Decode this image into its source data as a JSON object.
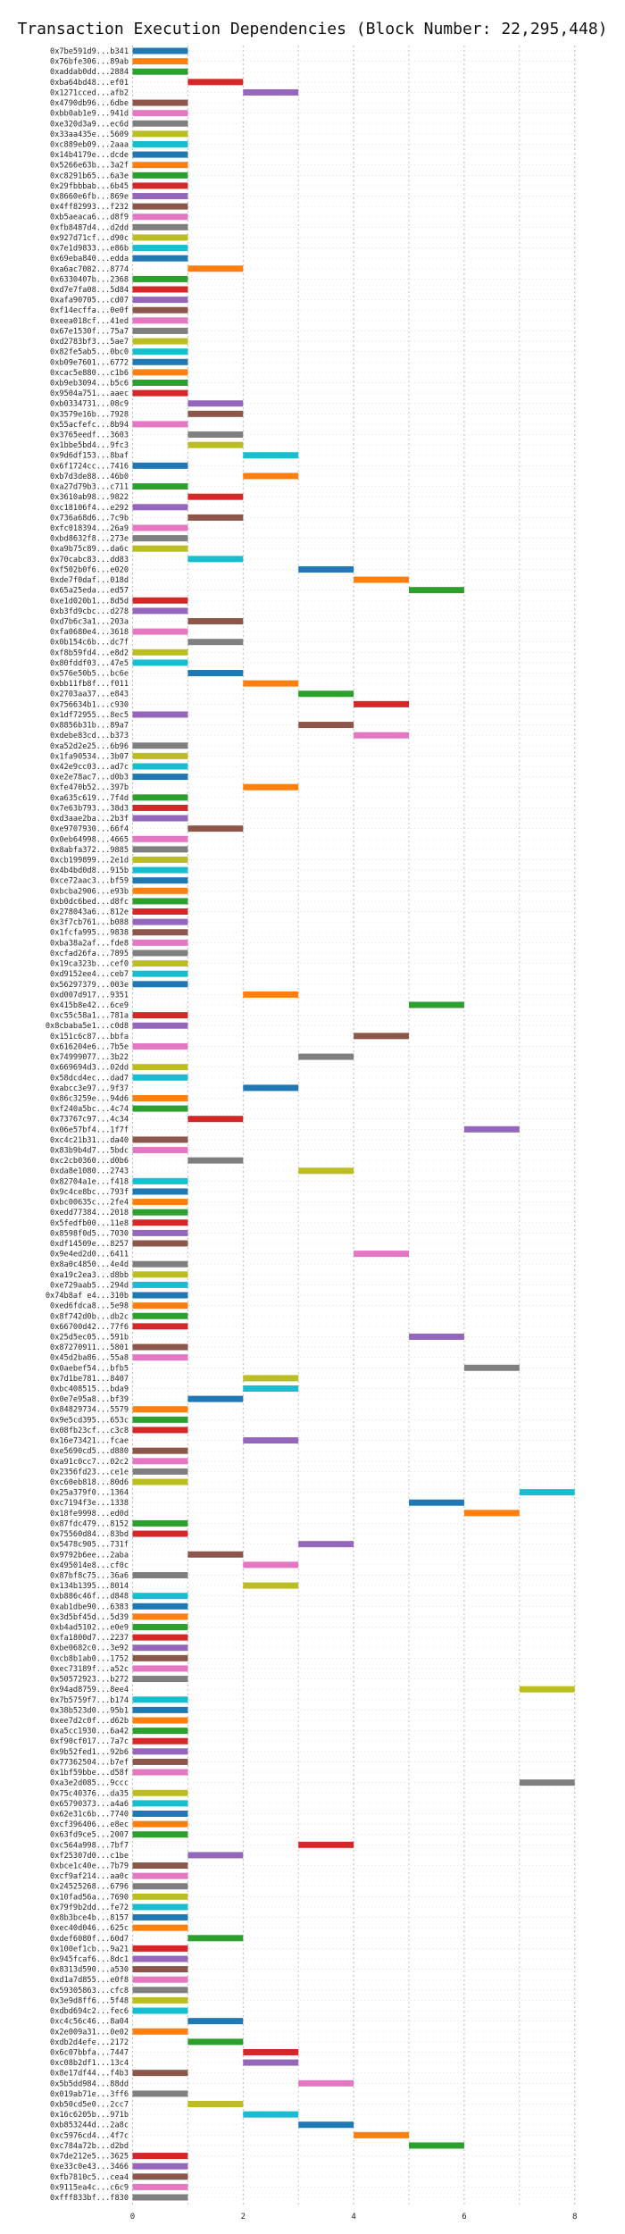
{
  "chart_data": {
    "type": "gantt",
    "title": "Transaction Execution Dependencies (Block Number: 22,295,448)",
    "xlabel": "",
    "ylabel": "",
    "xlim": [
      -0.5,
      8.5
    ],
    "xticks": [
      0,
      2,
      4,
      6,
      8
    ],
    "grid": true,
    "bar_colors": [
      "#1f77b4",
      "#ff7f0e",
      "#2ca02c",
      "#d62728",
      "#9467bd",
      "#8c564b",
      "#e377c2",
      "#7f7f7f",
      "#bcbd22",
      "#17becf"
    ],
    "transactions": [
      {
        "label": "0x7be591d9...b341",
        "start": 0,
        "end": 1
      },
      {
        "label": "0x76bfe306...89ab",
        "start": 0,
        "end": 1
      },
      {
        "label": "0xaddab0dd...2884",
        "start": 0,
        "end": 1
      },
      {
        "label": "0xba64bd48...ef01",
        "start": 1,
        "end": 2
      },
      {
        "label": "0x1271cced...afb2",
        "start": 2,
        "end": 3
      },
      {
        "label": "0x4790db96...6dbe",
        "start": 0,
        "end": 1
      },
      {
        "label": "0xbb0ab1e9...941d",
        "start": 0,
        "end": 1
      },
      {
        "label": "0xe320d3a9...ec6d",
        "start": 0,
        "end": 1
      },
      {
        "label": "0x33aa435e...5609",
        "start": 0,
        "end": 1
      },
      {
        "label": "0xc889eb09...2aaa",
        "start": 0,
        "end": 1
      },
      {
        "label": "0x14b4179e...dcde",
        "start": 0,
        "end": 1
      },
      {
        "label": "0x5266e63b...3a2f",
        "start": 0,
        "end": 1
      },
      {
        "label": "0xc8291b65...6a3e",
        "start": 0,
        "end": 1
      },
      {
        "label": "0x29fbbbab...6b45",
        "start": 0,
        "end": 1
      },
      {
        "label": "0x8660e6fb...869e",
        "start": 0,
        "end": 1
      },
      {
        "label": "0x4ff82993...f232",
        "start": 0,
        "end": 1
      },
      {
        "label": "0xb5aeaca6...d8f9",
        "start": 0,
        "end": 1
      },
      {
        "label": "0xfb8487d4...d2dd",
        "start": 0,
        "end": 1
      },
      {
        "label": "0x927d71cf...d90c",
        "start": 0,
        "end": 1
      },
      {
        "label": "0x7e1d9833...e86b",
        "start": 0,
        "end": 1
      },
      {
        "label": "0x69eba840...edda",
        "start": 0,
        "end": 1
      },
      {
        "label": "0xa6ac7082...8774",
        "start": 1,
        "end": 2
      },
      {
        "label": "0x6330407b...2368",
        "start": 0,
        "end": 1
      },
      {
        "label": "0xd7e7fa08...5d84",
        "start": 0,
        "end": 1
      },
      {
        "label": "0xafa90705...cd07",
        "start": 0,
        "end": 1
      },
      {
        "label": "0xf14ecffa...0e0f",
        "start": 0,
        "end": 1
      },
      {
        "label": "0xeea018cf...41ed",
        "start": 0,
        "end": 1
      },
      {
        "label": "0x67e1530f...75a7",
        "start": 0,
        "end": 1
      },
      {
        "label": "0xd2783bf3...5ae7",
        "start": 0,
        "end": 1
      },
      {
        "label": "0x82fe5ab5...0bc0",
        "start": 0,
        "end": 1
      },
      {
        "label": "0xb09e7601...6772",
        "start": 0,
        "end": 1
      },
      {
        "label": "0xcac5e880...c1b6",
        "start": 0,
        "end": 1
      },
      {
        "label": "0xb9eb3094...b5c6",
        "start": 0,
        "end": 1
      },
      {
        "label": "0x9504a751...aaec",
        "start": 0,
        "end": 1
      },
      {
        "label": "0xb0334731...08c9",
        "start": 1,
        "end": 2
      },
      {
        "label": "0x3579e16b...7928",
        "start": 1,
        "end": 2
      },
      {
        "label": "0x55acfefc...8b94",
        "start": 0,
        "end": 1
      },
      {
        "label": "0x3765eedf...3603",
        "start": 1,
        "end": 2
      },
      {
        "label": "0x1bbe5bd4...9fc3",
        "start": 1,
        "end": 2
      },
      {
        "label": "0x9d6df153...8baf",
        "start": 2,
        "end": 3
      },
      {
        "label": "0x6f1724cc...7416",
        "start": 0,
        "end": 1
      },
      {
        "label": "0xb7d3de88...46b0",
        "start": 2,
        "end": 3
      },
      {
        "label": "0xa27d79b3...c711",
        "start": 0,
        "end": 1
      },
      {
        "label": "0x3610ab98...9822",
        "start": 1,
        "end": 2
      },
      {
        "label": "0xc18106f4...e292",
        "start": 0,
        "end": 1
      },
      {
        "label": "0x736a68d6...7c9b",
        "start": 1,
        "end": 2
      },
      {
        "label": "0xfc018394...26a9",
        "start": 0,
        "end": 1
      },
      {
        "label": "0xbd8632f8...273e",
        "start": 0,
        "end": 1
      },
      {
        "label": "0xa9b75c89...da6c",
        "start": 0,
        "end": 1
      },
      {
        "label": "0x70cabc83...dd83",
        "start": 1,
        "end": 2
      },
      {
        "label": "0xf502b0f6...e020",
        "start": 3,
        "end": 4
      },
      {
        "label": "0xde7f0daf...018d",
        "start": 4,
        "end": 5
      },
      {
        "label": "0x65a25eda...ed57",
        "start": 5,
        "end": 6
      },
      {
        "label": "0xe1d020b1...8d5d",
        "start": 0,
        "end": 1
      },
      {
        "label": "0xb3fd9cbc...d278",
        "start": 0,
        "end": 1
      },
      {
        "label": "0xd7b6c3a1...203a",
        "start": 1,
        "end": 2
      },
      {
        "label": "0xfa0680e4...3618",
        "start": 0,
        "end": 1
      },
      {
        "label": "0x0b154c6b...dc7f",
        "start": 1,
        "end": 2
      },
      {
        "label": "0xf8b59fd4...e8d2",
        "start": 0,
        "end": 1
      },
      {
        "label": "0x80fddf03...47e5",
        "start": 0,
        "end": 1
      },
      {
        "label": "0x576e50b5...bc6e",
        "start": 1,
        "end": 2
      },
      {
        "label": "0xbb11fb8f...f011",
        "start": 2,
        "end": 3
      },
      {
        "label": "0x2703aa37...e843",
        "start": 3,
        "end": 4
      },
      {
        "label": "0x756634b1...c930",
        "start": 4,
        "end": 5
      },
      {
        "label": "0x1df72955...8ec5",
        "start": 0,
        "end": 1
      },
      {
        "label": "0x8856b31b...89a7",
        "start": 3,
        "end": 4
      },
      {
        "label": "0xdebe83cd...b373",
        "start": 4,
        "end": 5
      },
      {
        "label": "0xa52d2e25...6b96",
        "start": 0,
        "end": 1
      },
      {
        "label": "0x1fa90534...3b07",
        "start": 0,
        "end": 1
      },
      {
        "label": "0x42e9cc03...ad7c",
        "start": 0,
        "end": 1
      },
      {
        "label": "0xe2e78ac7...d0b3",
        "start": 0,
        "end": 1
      },
      {
        "label": "0xfe470b52...397b",
        "start": 2,
        "end": 3
      },
      {
        "label": "0xa635c619...7f4d",
        "start": 0,
        "end": 1
      },
      {
        "label": "0x7e63b793...38d3",
        "start": 0,
        "end": 1
      },
      {
        "label": "0xd3aae2ba...2b3f",
        "start": 0,
        "end": 1
      },
      {
        "label": "0xe9707930...66f4",
        "start": 1,
        "end": 2
      },
      {
        "label": "0x0eb64998...4665",
        "start": 0,
        "end": 1
      },
      {
        "label": "0x8abfa372...9885",
        "start": 0,
        "end": 1
      },
      {
        "label": "0xcb199899...2e1d",
        "start": 0,
        "end": 1
      },
      {
        "label": "0x4b4bd0d8...915b",
        "start": 0,
        "end": 1
      },
      {
        "label": "0xce72aac3...bf59",
        "start": 0,
        "end": 1
      },
      {
        "label": "0xbcba2906...e93b",
        "start": 0,
        "end": 1
      },
      {
        "label": "0xb0dc6bed...d8fc",
        "start": 0,
        "end": 1
      },
      {
        "label": "0x278043a6...812e",
        "start": 0,
        "end": 1
      },
      {
        "label": "0x3f7cb761...b088",
        "start": 0,
        "end": 1
      },
      {
        "label": "0x1fcfa995...9838",
        "start": 0,
        "end": 1
      },
      {
        "label": "0xba38a2af...fde8",
        "start": 0,
        "end": 1
      },
      {
        "label": "0xcfad26fa...7895",
        "start": 0,
        "end": 1
      },
      {
        "label": "0x19ca323b...cef0",
        "start": 0,
        "end": 1
      },
      {
        "label": "0xd9152ee4...ceb7",
        "start": 0,
        "end": 1
      },
      {
        "label": "0x56297379...003e",
        "start": 0,
        "end": 1
      },
      {
        "label": "0xd007d917...9351",
        "start": 2,
        "end": 3
      },
      {
        "label": "0x415b8e42...6ce9",
        "start": 5,
        "end": 6
      },
      {
        "label": "0xc55c58a1...781a",
        "start": 0,
        "end": 1
      },
      {
        "label": "0x8cbaba5e1...c0d8",
        "start": 0,
        "end": 1
      },
      {
        "label": "0x151c6c87...bbfa",
        "start": 4,
        "end": 5
      },
      {
        "label": "0x616204e6...7b5e",
        "start": 0,
        "end": 1
      },
      {
        "label": "0x74999077...3b22",
        "start": 3,
        "end": 4
      },
      {
        "label": "0x669694d3...02dd",
        "start": 0,
        "end": 1
      },
      {
        "label": "0x58dcd4ec...dad7",
        "start": 0,
        "end": 1
      },
      {
        "label": "0xabcc3e97...9f37",
        "start": 2,
        "end": 3
      },
      {
        "label": "0x86c3259e...94d6",
        "start": 0,
        "end": 1
      },
      {
        "label": "0xf240a5bc...4c74",
        "start": 0,
        "end": 1
      },
      {
        "label": "0x73767c97...4c34",
        "start": 1,
        "end": 2
      },
      {
        "label": "0x06e57bf4...1f7f",
        "start": 6,
        "end": 7
      },
      {
        "label": "0xc4c21b31...da40",
        "start": 0,
        "end": 1
      },
      {
        "label": "0x83b9b4d7...5bdc",
        "start": 0,
        "end": 1
      },
      {
        "label": "0xc2cb0360...d0b6",
        "start": 1,
        "end": 2
      },
      {
        "label": "0xda8e1080...2743",
        "start": 3,
        "end": 4
      },
      {
        "label": "0x82704a1e...f418",
        "start": 0,
        "end": 1
      },
      {
        "label": "0x9c4ce8bc...793f",
        "start": 0,
        "end": 1
      },
      {
        "label": "0xbc00635c...2fe4",
        "start": 0,
        "end": 1
      },
      {
        "label": "0xedd77384...2018",
        "start": 0,
        "end": 1
      },
      {
        "label": "0x5fedfb00...11e8",
        "start": 0,
        "end": 1
      },
      {
        "label": "0x8598f0d5...7030",
        "start": 0,
        "end": 1
      },
      {
        "label": "0xdf14509e...8257",
        "start": 0,
        "end": 1
      },
      {
        "label": "0x9e4ed2d0...6411",
        "start": 4,
        "end": 5
      },
      {
        "label": "0x8a0c4850...4e4d",
        "start": 0,
        "end": 1
      },
      {
        "label": "0xa19c2ea3...d8bb",
        "start": 0,
        "end": 1
      },
      {
        "label": "0xe729aab5...294d",
        "start": 0,
        "end": 1
      },
      {
        "label": "0x74b8af e4...310b",
        "start": 0,
        "end": 1
      },
      {
        "label": "0xed6fdca8...5e98",
        "start": 0,
        "end": 1
      },
      {
        "label": "0x8f742d0b...db2c",
        "start": 0,
        "end": 1
      },
      {
        "label": "0x66700d42...77f6",
        "start": 0,
        "end": 1
      },
      {
        "label": "0x25d5ec05...591b",
        "start": 5,
        "end": 6
      },
      {
        "label": "0x87270911...5801",
        "start": 0,
        "end": 1
      },
      {
        "label": "0x45d2ba86...55a8",
        "start": 0,
        "end": 1
      },
      {
        "label": "0x0aebef54...bfb5",
        "start": 6,
        "end": 7
      },
      {
        "label": "0x7d1be781...8407",
        "start": 2,
        "end": 3
      },
      {
        "label": "0xbc408515...bda9",
        "start": 2,
        "end": 3
      },
      {
        "label": "0x0e7e95a8...bf39",
        "start": 1,
        "end": 2
      },
      {
        "label": "0x84829734...5579",
        "start": 0,
        "end": 1
      },
      {
        "label": "0x9e5cd395...653c",
        "start": 0,
        "end": 1
      },
      {
        "label": "0x08fb23cf...c3c8",
        "start": 0,
        "end": 1
      },
      {
        "label": "0x16e73421...fcae",
        "start": 2,
        "end": 3
      },
      {
        "label": "0xe5690cd5...d880",
        "start": 0,
        "end": 1
      },
      {
        "label": "0xa91c0cc7...02c2",
        "start": 0,
        "end": 1
      },
      {
        "label": "0x2356fd23...ce1e",
        "start": 0,
        "end": 1
      },
      {
        "label": "0xc60eb818...80d6",
        "start": 0,
        "end": 1
      },
      {
        "label": "0x25a379f0...1364",
        "start": 7,
        "end": 8
      },
      {
        "label": "0xc7194f3e...1338",
        "start": 5,
        "end": 6
      },
      {
        "label": "0x18fe9998...ed0d",
        "start": 6,
        "end": 7
      },
      {
        "label": "0x87fdc479...8152",
        "start": 0,
        "end": 1
      },
      {
        "label": "0x75560d84...83bd",
        "start": 0,
        "end": 1
      },
      {
        "label": "0x5478c905...731f",
        "start": 3,
        "end": 4
      },
      {
        "label": "0x9792b6ee...2aba",
        "start": 1,
        "end": 2
      },
      {
        "label": "0x495014e8...cf0c",
        "start": 2,
        "end": 3
      },
      {
        "label": "0x87bf8c75...36a6",
        "start": 0,
        "end": 1
      },
      {
        "label": "0x134b1395...8014",
        "start": 2,
        "end": 3
      },
      {
        "label": "0xb886c46f...d848",
        "start": 0,
        "end": 1
      },
      {
        "label": "0xab1dbe90...6383",
        "start": 0,
        "end": 1
      },
      {
        "label": "0x3d5bf45d...5d39",
        "start": 0,
        "end": 1
      },
      {
        "label": "0xb4ad5102...e0e9",
        "start": 0,
        "end": 1
      },
      {
        "label": "0xfa1800d7...2237",
        "start": 0,
        "end": 1
      },
      {
        "label": "0xbe0682c0...3e92",
        "start": 0,
        "end": 1
      },
      {
        "label": "0xcb8b1ab0...1752",
        "start": 0,
        "end": 1
      },
      {
        "label": "0xec73189f...a52c",
        "start": 0,
        "end": 1
      },
      {
        "label": "0x50572923...b272",
        "start": 0,
        "end": 1
      },
      {
        "label": "0x94ad8759...8ee4",
        "start": 7,
        "end": 8
      },
      {
        "label": "0x7b5759f7...b174",
        "start": 0,
        "end": 1
      },
      {
        "label": "0x38b523d0...95b1",
        "start": 0,
        "end": 1
      },
      {
        "label": "0xee7d2c0f...d62b",
        "start": 0,
        "end": 1
      },
      {
        "label": "0xa5cc1930...6a42",
        "start": 0,
        "end": 1
      },
      {
        "label": "0xf90cf017...7a7c",
        "start": 0,
        "end": 1
      },
      {
        "label": "0x9b52fed1...92b6",
        "start": 0,
        "end": 1
      },
      {
        "label": "0x77362504...b7ef",
        "start": 0,
        "end": 1
      },
      {
        "label": "0x1bf59bbe...d58f",
        "start": 0,
        "end": 1
      },
      {
        "label": "0xa3e2d085...9ccc",
        "start": 7,
        "end": 8
      },
      {
        "label": "0x75c40376...da35",
        "start": 0,
        "end": 1
      },
      {
        "label": "0x65790373...a4a6",
        "start": 0,
        "end": 1
      },
      {
        "label": "0x62e31c6b...7740",
        "start": 0,
        "end": 1
      },
      {
        "label": "0xcf396406...e8ec",
        "start": 0,
        "end": 1
      },
      {
        "label": "0x63fd9ce5...2007",
        "start": 0,
        "end": 1
      },
      {
        "label": "0xc564a998...7bf7",
        "start": 3,
        "end": 4
      },
      {
        "label": "0xf25307d0...c1be",
        "start": 1,
        "end": 2
      },
      {
        "label": "0xbce1c40e...7b79",
        "start": 0,
        "end": 1
      },
      {
        "label": "0xcf9af214...aa0c",
        "start": 0,
        "end": 1
      },
      {
        "label": "0x24525268...6796",
        "start": 0,
        "end": 1
      },
      {
        "label": "0x10fad56a...7690",
        "start": 0,
        "end": 1
      },
      {
        "label": "0x79f9b2dd...fe72",
        "start": 0,
        "end": 1
      },
      {
        "label": "0x8b3bce4b...8157",
        "start": 0,
        "end": 1
      },
      {
        "label": "0xec40d046...625c",
        "start": 0,
        "end": 1
      },
      {
        "label": "0xdef6080f...60d7",
        "start": 1,
        "end": 2
      },
      {
        "label": "0x100ef1cb...9a21",
        "start": 0,
        "end": 1
      },
      {
        "label": "0x945fcaf6...8dc1",
        "start": 0,
        "end": 1
      },
      {
        "label": "0x8313d590...a530",
        "start": 0,
        "end": 1
      },
      {
        "label": "0xd1a7d855...e0f8",
        "start": 0,
        "end": 1
      },
      {
        "label": "0x59305863...cfc8",
        "start": 0,
        "end": 1
      },
      {
        "label": "0x3e9d8ff6...5f48",
        "start": 0,
        "end": 1
      },
      {
        "label": "0xdbd694c2...fec6",
        "start": 0,
        "end": 1
      },
      {
        "label": "0xc4c56c46...8a04",
        "start": 1,
        "end": 2
      },
      {
        "label": "0x2e009a31...0e02",
        "start": 0,
        "end": 1
      },
      {
        "label": "0xdb2d4efe...2172",
        "start": 1,
        "end": 2
      },
      {
        "label": "0x6c07bbfa...7447",
        "start": 2,
        "end": 3
      },
      {
        "label": "0xc08b2df1...13c4",
        "start": 2,
        "end": 3
      },
      {
        "label": "0x8e17df44...f4b3",
        "start": 0,
        "end": 1
      },
      {
        "label": "0x5b5dd984...88dd",
        "start": 3,
        "end": 4
      },
      {
        "label": "0x019ab71e...3ff6",
        "start": 0,
        "end": 1
      },
      {
        "label": "0xb50cd5e0...2cc7",
        "start": 1,
        "end": 2
      },
      {
        "label": "0x16c6205b...971b",
        "start": 2,
        "end": 3
      },
      {
        "label": "0xb853244d...2a8c",
        "start": 3,
        "end": 4
      },
      {
        "label": "0xc5976cd4...4f7c",
        "start": 4,
        "end": 5
      },
      {
        "label": "0xc784a72b...d2bd",
        "start": 5,
        "end": 6
      },
      {
        "label": "0x7de212e5...3625",
        "start": 0,
        "end": 1
      },
      {
        "label": "0xe33c0e43...3466",
        "start": 0,
        "end": 1
      },
      {
        "label": "0xfb7810c5...cea4",
        "start": 0,
        "end": 1
      },
      {
        "label": "0x9115ea4c...c6c9",
        "start": 0,
        "end": 1
      },
      {
        "label": "0xfff833bf...f830",
        "start": 0,
        "end": 1
      }
    ]
  }
}
